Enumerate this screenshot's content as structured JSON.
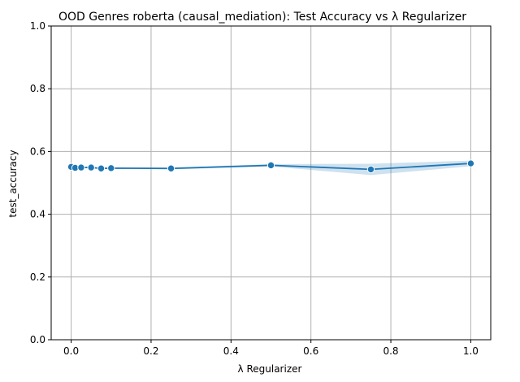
{
  "chart_data": {
    "type": "line",
    "title": "OOD Genres roberta (causal_mediation): Test Accuracy vs λ Regularizer",
    "xlabel": "λ Regularizer",
    "ylabel": "test_accuracy",
    "xlim": [
      -0.05,
      1.05
    ],
    "ylim": [
      0.0,
      1.0
    ],
    "xticks": [
      0.0,
      0.2,
      0.4,
      0.6,
      0.8,
      1.0
    ],
    "xtick_labels": [
      "0.0",
      "0.2",
      "0.4",
      "0.6",
      "0.8",
      "1.0"
    ],
    "yticks": [
      0.0,
      0.2,
      0.4,
      0.6,
      0.8,
      1.0
    ],
    "ytick_labels": [
      "0.0",
      "0.2",
      "0.4",
      "0.6",
      "0.8",
      "1.0"
    ],
    "grid": true,
    "series": [
      {
        "color": "#1f77b4",
        "points": [
          {
            "x": 0.0,
            "y": 0.551,
            "lo": 0.549,
            "hi": 0.553
          },
          {
            "x": 0.01,
            "y": 0.548,
            "lo": 0.546,
            "hi": 0.55
          },
          {
            "x": 0.025,
            "y": 0.549,
            "lo": 0.547,
            "hi": 0.551
          },
          {
            "x": 0.05,
            "y": 0.549,
            "lo": 0.547,
            "hi": 0.551
          },
          {
            "x": 0.075,
            "y": 0.546,
            "lo": 0.544,
            "hi": 0.548
          },
          {
            "x": 0.1,
            "y": 0.547,
            "lo": 0.545,
            "hi": 0.549
          },
          {
            "x": 0.25,
            "y": 0.546,
            "lo": 0.543,
            "hi": 0.549
          },
          {
            "x": 0.5,
            "y": 0.556,
            "lo": 0.552,
            "hi": 0.56
          },
          {
            "x": 0.75,
            "y": 0.543,
            "lo": 0.525,
            "hi": 0.561
          },
          {
            "x": 1.0,
            "y": 0.562,
            "lo": 0.553,
            "hi": 0.571
          }
        ]
      }
    ]
  }
}
